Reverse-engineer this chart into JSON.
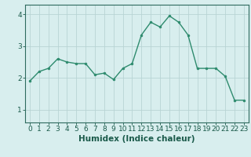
{
  "x": [
    0,
    1,
    2,
    3,
    4,
    5,
    6,
    7,
    8,
    9,
    10,
    11,
    12,
    13,
    14,
    15,
    16,
    17,
    18,
    19,
    20,
    21,
    22,
    23
  ],
  "y": [
    1.9,
    2.2,
    2.3,
    2.6,
    2.5,
    2.45,
    2.45,
    2.1,
    2.15,
    1.95,
    2.3,
    2.45,
    3.35,
    3.75,
    3.6,
    3.95,
    3.75,
    3.35,
    2.3,
    2.3,
    2.3,
    2.05,
    1.3,
    1.3
  ],
  "line_color": "#2e8b6e",
  "marker": "o",
  "marker_size": 2.0,
  "linewidth": 1.0,
  "background_color": "#d8eeee",
  "grid_color": "#b8d4d4",
  "xlabel": "Humidex (Indice chaleur)",
  "xlim": [
    -0.5,
    23.5
  ],
  "ylim": [
    0.6,
    4.3
  ],
  "yticks": [
    1,
    2,
    3,
    4
  ],
  "ytick_labels": [
    "1",
    "2",
    "3",
    "4"
  ],
  "xticks": [
    0,
    1,
    2,
    3,
    4,
    5,
    6,
    7,
    8,
    9,
    10,
    11,
    12,
    13,
    14,
    15,
    16,
    17,
    18,
    19,
    20,
    21,
    22,
    23
  ],
  "xlabel_fontsize": 7.5,
  "tick_fontsize": 6.5,
  "tick_color": "#1a5a4a",
  "axis_color": "#2e6b5e",
  "grid_linewidth": 0.6,
  "spine_linewidth": 0.8
}
